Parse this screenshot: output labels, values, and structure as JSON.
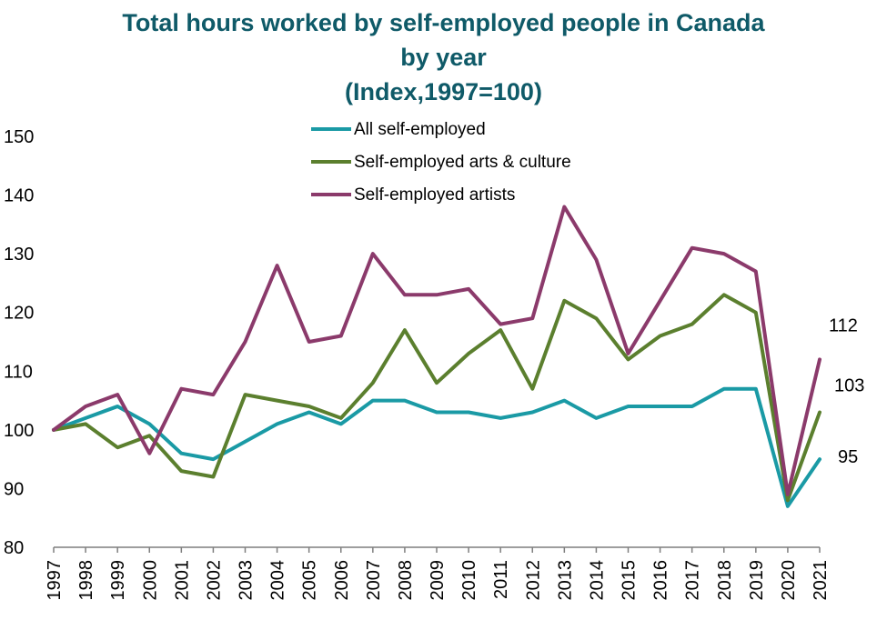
{
  "chart_data": {
    "type": "line",
    "title_lines": [
      "Total hours worked by self-employed people in Canada",
      "by year",
      "(Index,1997=100)"
    ],
    "xlabel": "",
    "ylabel": "",
    "x": [
      "1997",
      "1998",
      "1999",
      "2000",
      "2001",
      "2002",
      "2003",
      "2004",
      "2005",
      "2006",
      "2007",
      "2008",
      "2009",
      "2010",
      "2011",
      "2012",
      "2013",
      "2014",
      "2015",
      "2016",
      "2017",
      "2018",
      "2019",
      "2020",
      "2021"
    ],
    "ylim": [
      80,
      150
    ],
    "yticks": [
      80,
      90,
      100,
      110,
      120,
      130,
      140,
      150
    ],
    "grid": false,
    "legend_position": "top-center",
    "series": [
      {
        "name": "All self-employed",
        "color": "#1a9aa5",
        "values": [
          100,
          102,
          104,
          101,
          96,
          95,
          98,
          101,
          103,
          101,
          105,
          105,
          103,
          103,
          102,
          103,
          105,
          102,
          104,
          104,
          104,
          107,
          107,
          87,
          95
        ],
        "end_label": "95"
      },
      {
        "name": "Self-employed arts & culture",
        "color": "#5b7f2e",
        "values": [
          100,
          101,
          97,
          99,
          93,
          92,
          106,
          105,
          104,
          102,
          108,
          117,
          108,
          113,
          117,
          107,
          122,
          119,
          112,
          116,
          118,
          123,
          120,
          88,
          103
        ],
        "end_label": "103"
      },
      {
        "name": "Self-employed artists",
        "color": "#8b3a6b",
        "values": [
          100,
          104,
          106,
          96,
          107,
          106,
          115,
          128,
          115,
          116,
          130,
          123,
          123,
          124,
          118,
          119,
          138,
          129,
          113,
          122,
          131,
          130,
          127,
          89,
          112
        ],
        "end_label": "112"
      }
    ]
  }
}
